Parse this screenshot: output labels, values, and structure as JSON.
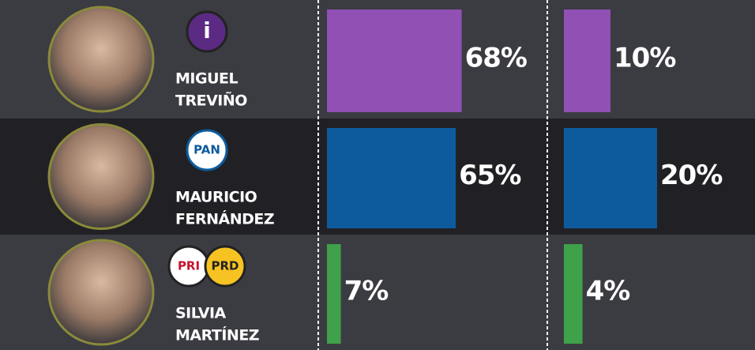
{
  "rows": [
    {
      "name": [
        "MIGUEL",
        "TREVIÑO"
      ],
      "logos": [
        "i"
      ]
    },
    {
      "name": [
        "MAURICIO",
        "FERNÁNDEZ"
      ],
      "logos": [
        "PAN"
      ]
    },
    {
      "name": [
        "SILVIA",
        "MARTÍNEZ"
      ],
      "logos": [
        "PRI",
        "PRD"
      ]
    }
  ],
  "chart_data": [
    {
      "type": "bar",
      "orientation": "horizontal",
      "xlim": [
        0,
        110
      ],
      "colors": [
        "#9150b4",
        "#0d5b9d",
        "#3fa14a"
      ],
      "values": [
        68,
        65,
        7
      ],
      "value_labels": [
        "68%",
        "65%",
        "7%"
      ]
    },
    {
      "type": "bar",
      "orientation": "horizontal",
      "xlim": [
        0,
        40
      ],
      "colors": [
        "#9150b4",
        "#0d5b9d",
        "#3fa14a"
      ],
      "values": [
        10,
        20,
        4
      ],
      "value_labels": [
        "10%",
        "20%",
        "4%"
      ]
    }
  ]
}
